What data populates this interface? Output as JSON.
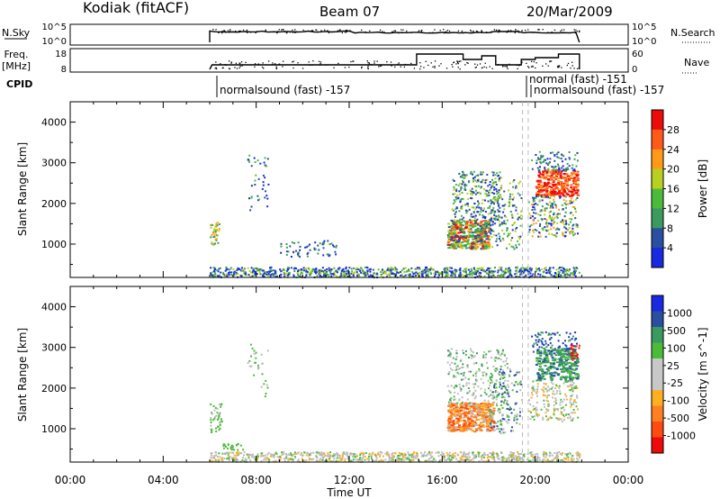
{
  "header": {
    "station": "Kodiak (fitACF)",
    "beam": "Beam 07",
    "date": "20/Mar/2009"
  },
  "strips": {
    "nsky_label": "N.Sky",
    "nsearch_label": "N.Search",
    "freq_label_1": "Freq.",
    "freq_label_2": "[MHz]",
    "nave_label": "Nave",
    "cpid_label": "CPID",
    "noise_ticks": [
      "10^5",
      "10^0"
    ],
    "freq_ticks": [
      "18",
      "8"
    ],
    "nave_ticks": [
      "60",
      "0"
    ],
    "cpid_segments": [
      {
        "label": "normalsound (fast) -157",
        "start_hour": 6.0
      },
      {
        "label": "normal (fast) -151",
        "start_hour": 19.3
      },
      {
        "label": "normalsound (fast) -157",
        "start_hour": 19.5
      }
    ]
  },
  "colors": {
    "power_scale": [
      "#1a28e0",
      "#2a4fa0",
      "#3a9a60",
      "#4cbb3c",
      "#b8d020",
      "#ff9a18",
      "#ff5a18",
      "#ee0a0a"
    ],
    "velocity_scale": [
      "#1a28e0",
      "#2a4fa0",
      "#3a9a60",
      "#4cbb3c",
      "#c8c8c8",
      "#c8c8c8",
      "#ffb020",
      "#ff8020",
      "#ff4a10",
      "#ee0a0a"
    ],
    "ground_scatter": "#bbbbbb"
  },
  "chart_data": [
    {
      "type": "heatmap",
      "panel": "power",
      "xlabel": "",
      "ylabel": "Slant Range [km]",
      "xlim": [
        0,
        24
      ],
      "ylim": [
        180,
        4500
      ],
      "yticks": [
        "1000",
        "2000",
        "3000",
        "4000"
      ],
      "colorbar": {
        "label": "Power [dB]",
        "ticks": [
          "4",
          "8",
          "12",
          "16",
          "20",
          "24",
          "28"
        ]
      }
    },
    {
      "type": "heatmap",
      "panel": "velocity",
      "xlabel": "Time UT",
      "ylabel": "Slant Range [km]",
      "xlim": [
        0,
        24
      ],
      "ylim": [
        180,
        4500
      ],
      "xticks": [
        "00:00",
        "04:00",
        "08:00",
        "12:00",
        "16:00",
        "20:00",
        "00:00"
      ],
      "yticks": [
        "1000",
        "2000",
        "3000",
        "4000"
      ],
      "colorbar": {
        "label": "Velocity [m s^-1]",
        "ticks": [
          "1000",
          "500",
          "100",
          "25",
          "-25",
          "-100",
          "-500",
          "-1000"
        ]
      }
    }
  ]
}
